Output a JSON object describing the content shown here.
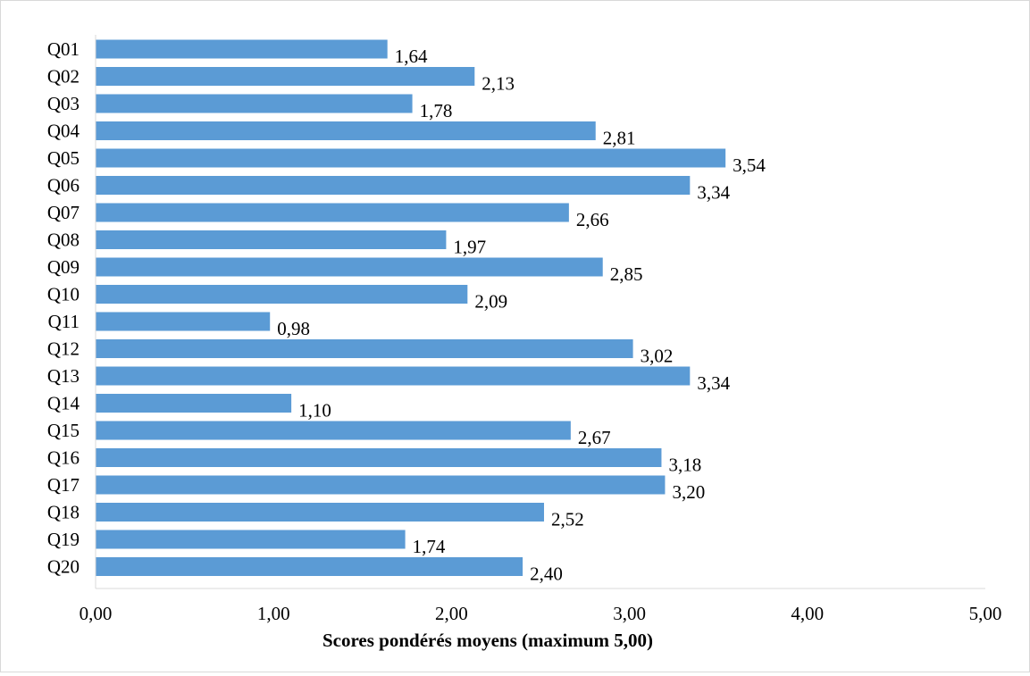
{
  "chart_data": {
    "type": "bar",
    "orientation": "horizontal",
    "title": "",
    "xlabel": "Scores pondérés moyens (maximum 5,00)",
    "ylabel": "",
    "xlim": [
      0,
      5
    ],
    "grid": false,
    "legend": "none",
    "bar_color": "#5b9bd5",
    "categories": [
      "Q01",
      "Q02",
      "Q03",
      "Q04",
      "Q05",
      "Q06",
      "Q07",
      "Q08",
      "Q09",
      "Q10",
      "Q11",
      "Q12",
      "Q13",
      "Q14",
      "Q15",
      "Q16",
      "Q17",
      "Q18",
      "Q19",
      "Q20"
    ],
    "values": [
      1.64,
      2.13,
      1.78,
      2.81,
      3.54,
      3.34,
      2.66,
      1.97,
      2.85,
      2.09,
      0.98,
      3.02,
      3.34,
      1.1,
      2.67,
      3.18,
      3.2,
      2.52,
      1.74,
      2.4
    ],
    "value_labels": [
      "1,64",
      "2,13",
      "1,78",
      "2,81",
      "3,54",
      "3,34",
      "2,66",
      "1,97",
      "2,85",
      "2,09",
      "0,98",
      "3,02",
      "3,34",
      "1,10",
      "2,67",
      "3,18",
      "3,20",
      "2,52",
      "1,74",
      "2,40"
    ],
    "x_ticks": [
      0,
      1,
      2,
      3,
      4,
      5
    ],
    "x_tick_labels": [
      "0,00",
      "1,00",
      "2,00",
      "3,00",
      "4,00",
      "5,00"
    ]
  }
}
